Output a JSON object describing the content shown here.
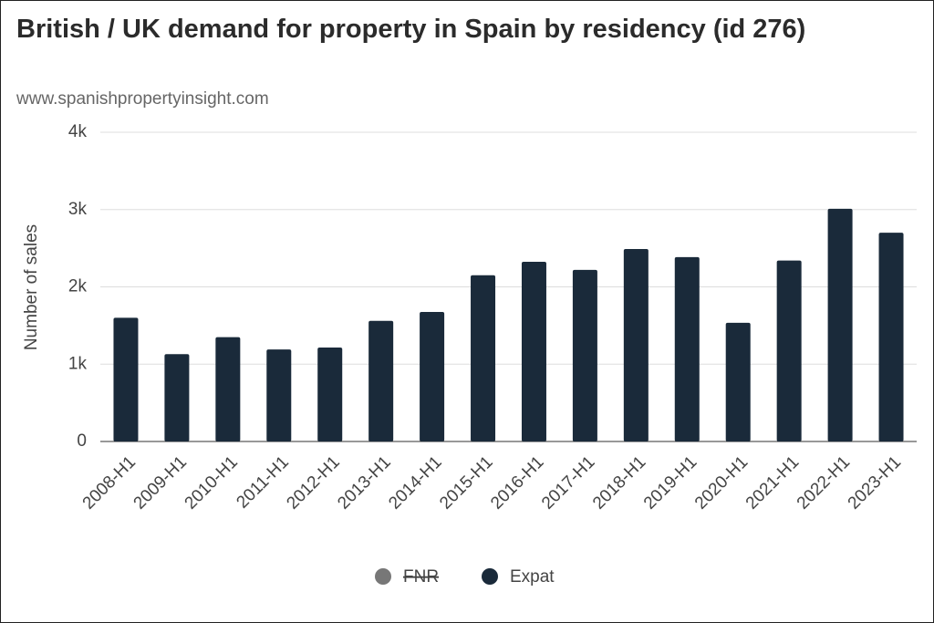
{
  "chart_data": {
    "type": "bar",
    "title": "British / UK demand for property in Spain by residency (id 276)",
    "subtitle": "www.spanishpropertyinsight.com",
    "y_label": "Number of sales",
    "categories": [
      "2008-H1",
      "2009-H1",
      "2010-H1",
      "2011-H1",
      "2012-H1",
      "2013-H1",
      "2014-H1",
      "2015-H1",
      "2016-H1",
      "2017-H1",
      "2018-H1",
      "2019-H1",
      "2020-H1",
      "2021-H1",
      "2022-H1",
      "2023-H1"
    ],
    "series": [
      {
        "name": "FNR",
        "color": "#777777",
        "hidden": true,
        "values": [
          null,
          null,
          null,
          null,
          null,
          null,
          null,
          null,
          null,
          null,
          null,
          null,
          null,
          null,
          null,
          null
        ]
      },
      {
        "name": "Expat",
        "color": "#1a2a3a",
        "values": [
          1600,
          1130,
          1350,
          1190,
          1215,
          1560,
          1675,
          2150,
          2325,
          2220,
          2490,
          2385,
          1535,
          2340,
          3010,
          2700
        ]
      }
    ],
    "ylim": [
      0,
      4000
    ],
    "yticks": [
      0,
      {
        "value": 1000,
        "label": "1k"
      },
      {
        "value": 2000,
        "label": "2k"
      },
      {
        "value": 3000,
        "label": "3k"
      },
      {
        "value": 4000,
        "label": "4k"
      }
    ],
    "grid": true
  }
}
